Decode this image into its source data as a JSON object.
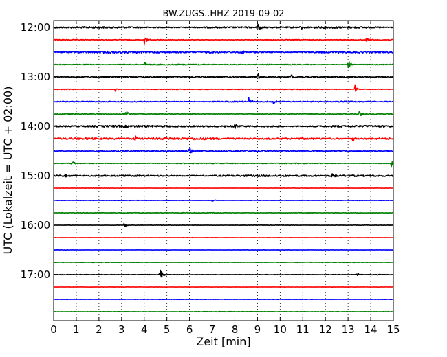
{
  "chart_data": {
    "type": "line",
    "title": "BW.ZUGS..HHZ 2019-09-02",
    "xlabel": "Zeit  [min]",
    "ylabel": "UTC (Lokalzeit = UTC + 02:00)",
    "xlim": [
      0,
      15
    ],
    "x_ticks": [
      "0",
      "1",
      "2",
      "3",
      "4",
      "5",
      "6",
      "7",
      "8",
      "9",
      "10",
      "11",
      "12",
      "13",
      "14",
      "15"
    ],
    "y_tick_labels": [
      "12:00",
      "13:00",
      "14:00",
      "15:00",
      "16:00",
      "17:00"
    ],
    "grid": "vertical dotted lines at each minute",
    "trace_interval_minutes": 15,
    "colors": [
      "#000000",
      "#ff0000",
      "#0000ff",
      "#008000"
    ],
    "series": [
      {
        "start": "12:00",
        "color": "#000000",
        "noise": 0.9,
        "events": [
          {
            "t": 9.0,
            "amp": 8
          },
          {
            "t": 10.9,
            "amp": 4
          }
        ]
      },
      {
        "start": "12:15",
        "color": "#ff0000",
        "noise": 0.4,
        "events": [
          {
            "t": 4.0,
            "amp": 7
          },
          {
            "t": 13.8,
            "amp": 6
          }
        ]
      },
      {
        "start": "12:30",
        "color": "#0000ff",
        "noise": 1.0,
        "events": [
          {
            "t": 8.3,
            "amp": 6
          }
        ]
      },
      {
        "start": "12:45",
        "color": "#008000",
        "noise": 0.5,
        "events": [
          {
            "t": 4.0,
            "amp": 6
          },
          {
            "t": 13.0,
            "amp": 8
          }
        ]
      },
      {
        "start": "13:00",
        "color": "#000000",
        "noise": 0.9,
        "events": [
          {
            "t": 9.0,
            "amp": 7
          },
          {
            "t": 10.5,
            "amp": 4
          }
        ]
      },
      {
        "start": "13:15",
        "color": "#ff0000",
        "noise": 0.4,
        "events": [
          {
            "t": 2.7,
            "amp": 6
          },
          {
            "t": 13.3,
            "amp": 6
          }
        ]
      },
      {
        "start": "13:30",
        "color": "#0000ff",
        "noise": 0.6,
        "events": [
          {
            "t": 8.6,
            "amp": 7
          },
          {
            "t": 9.7,
            "amp": 4
          }
        ]
      },
      {
        "start": "13:45",
        "color": "#008000",
        "noise": 0.4,
        "events": [
          {
            "t": 3.2,
            "amp": 6
          },
          {
            "t": 13.5,
            "amp": 7
          }
        ]
      },
      {
        "start": "14:00",
        "color": "#000000",
        "noise": 1.0,
        "events": [
          {
            "t": 8.0,
            "amp": 7
          },
          {
            "t": 9.8,
            "amp": 4
          }
        ]
      },
      {
        "start": "14:15",
        "color": "#ff0000",
        "noise": 1.1,
        "events": [
          {
            "t": 3.6,
            "amp": 7
          },
          {
            "t": 13.2,
            "amp": 5
          }
        ]
      },
      {
        "start": "14:30",
        "color": "#0000ff",
        "noise": 0.8,
        "events": [
          {
            "t": 6.0,
            "amp": 7
          }
        ]
      },
      {
        "start": "14:45",
        "color": "#008000",
        "noise": 0.4,
        "events": [
          {
            "t": 0.8,
            "amp": 6
          },
          {
            "t": 14.9,
            "amp": 8
          }
        ]
      },
      {
        "start": "15:00",
        "color": "#000000",
        "noise": 0.9,
        "events": [
          {
            "t": 0.5,
            "amp": 3
          },
          {
            "t": 12.3,
            "amp": 3
          }
        ]
      },
      {
        "start": "15:15",
        "color": "#ff0000",
        "noise": 0.15,
        "events": []
      },
      {
        "start": "15:30",
        "color": "#0000ff",
        "noise": 0.2,
        "events": [
          {
            "t": 7.0,
            "amp": 3
          }
        ]
      },
      {
        "start": "15:45",
        "color": "#008000",
        "noise": 0.3,
        "events": []
      },
      {
        "start": "16:00",
        "color": "#000000",
        "noise": 0.2,
        "events": [
          {
            "t": 3.1,
            "amp": 4
          }
        ]
      },
      {
        "start": "16:15",
        "color": "#ff0000",
        "noise": 0.15,
        "events": []
      },
      {
        "start": "16:30",
        "color": "#0000ff",
        "noise": 0.15,
        "events": []
      },
      {
        "start": "16:45",
        "color": "#008000",
        "noise": 0.25,
        "events": []
      },
      {
        "start": "17:00",
        "color": "#000000",
        "noise": 0.3,
        "events": [
          {
            "t": 4.7,
            "amp": 13
          },
          {
            "t": 13.4,
            "amp": 2
          }
        ]
      },
      {
        "start": "17:15",
        "color": "#ff0000",
        "noise": 0.15,
        "events": []
      },
      {
        "start": "17:30",
        "color": "#0000ff",
        "noise": 0.2,
        "events": []
      },
      {
        "start": "17:45",
        "color": "#008000",
        "noise": 0.25,
        "events": []
      }
    ]
  }
}
